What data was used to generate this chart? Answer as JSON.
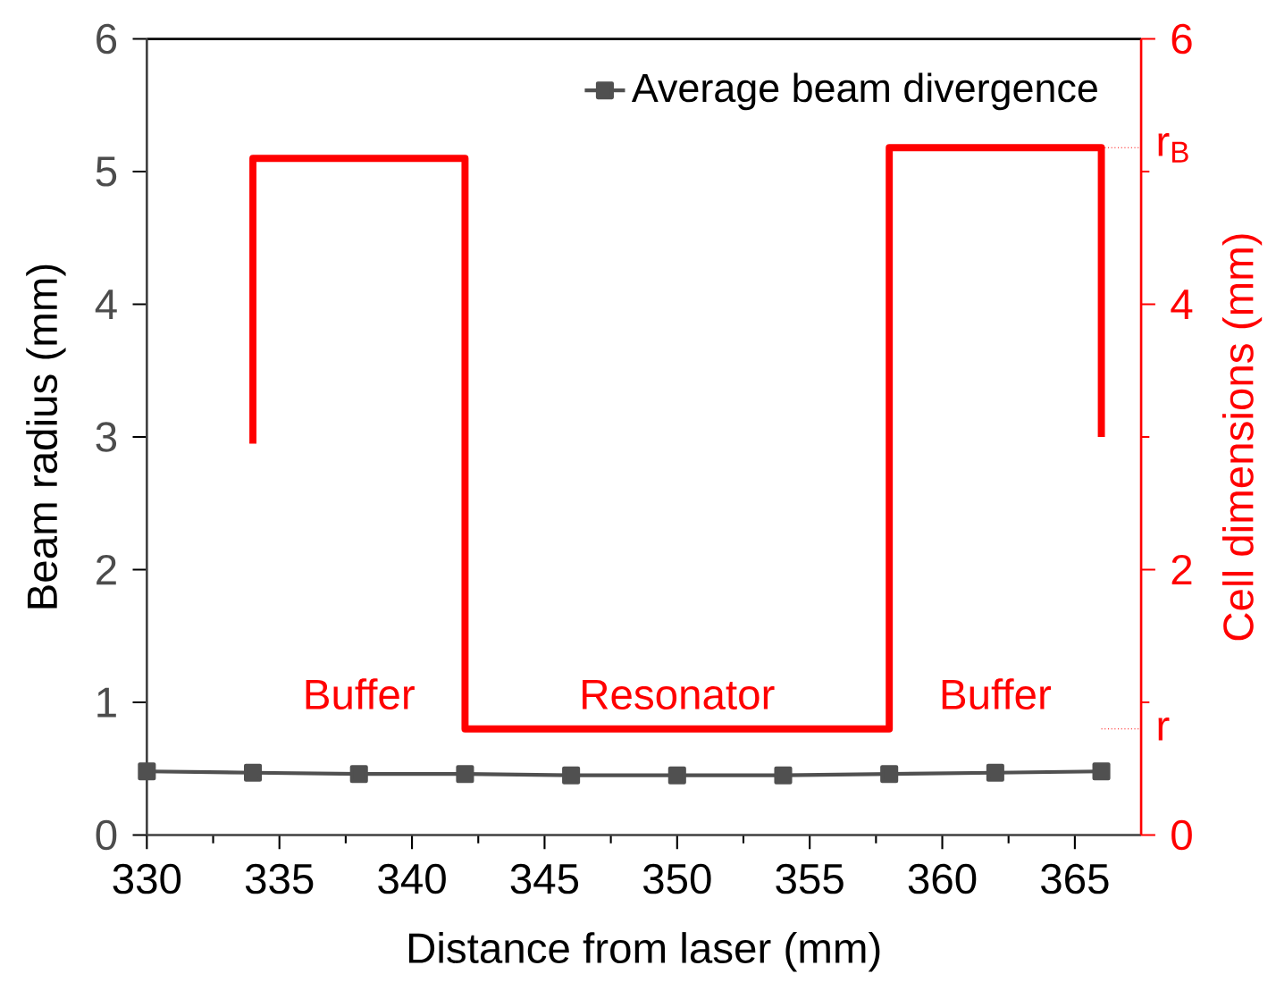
{
  "chart_data": {
    "type": "line",
    "xlabel": "Distance from laser (mm)",
    "ylabel": "Beam radius (mm)",
    "y2label": "Cell dimensions (mm)",
    "xlim": [
      330,
      367.5
    ],
    "xticks": [
      330,
      335,
      340,
      345,
      350,
      355,
      360,
      365
    ],
    "ylim": [
      0,
      6
    ],
    "yticks": [
      0,
      1,
      2,
      3,
      4,
      5,
      6
    ],
    "y2lim": [
      0,
      6
    ],
    "y2ticks": [
      0,
      2,
      4,
      6
    ],
    "legend": "top right",
    "series": [
      {
        "name": "Average beam divergence",
        "color": "#505050",
        "marker": "square",
        "x": [
          330,
          334,
          338,
          342,
          346,
          350,
          354,
          358,
          362,
          366
        ],
        "values": [
          0.48,
          0.47,
          0.46,
          0.46,
          0.45,
          0.45,
          0.45,
          0.46,
          0.47,
          0.48
        ]
      },
      {
        "color": "#ff0000",
        "axis": "y2",
        "marker": "none",
        "x": [
          334,
          334,
          342,
          342,
          358,
          358,
          366,
          366
        ],
        "values": [
          2.95,
          5.1,
          5.1,
          0.8,
          0.8,
          5.18,
          5.18,
          3.0
        ]
      }
    ],
    "ref_lines": [
      {
        "axis": "y2",
        "value": 5.18,
        "label": "r$_{B}$",
        "color": "#ff0000",
        "line_style": "dotted"
      },
      {
        "axis": "y2",
        "value": 0.8,
        "label": "r",
        "color": "#ff0000",
        "line_style": "dotted"
      }
    ],
    "annotations": [
      "Buffer",
      "Resonator",
      "Buffer"
    ]
  }
}
